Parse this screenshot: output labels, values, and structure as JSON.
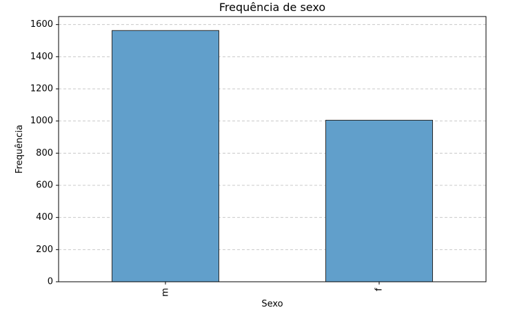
{
  "chart_data": {
    "type": "bar",
    "title": "Frequência de sexo",
    "xlabel": "Sexo",
    "ylabel": "Frequência",
    "categories": [
      "m",
      "f"
    ],
    "values": [
      1563,
      1005
    ],
    "ylim": [
      0,
      1650
    ],
    "yticks": [
      "0",
      "200",
      "400",
      "600",
      "800",
      "1000",
      "1200",
      "1400",
      "1600"
    ],
    "grid": "y-dashed",
    "legend": "none",
    "colors": {
      "bar": "#619fcb",
      "bar_edge": "#2b2b2b",
      "grid": "#c8c8c8"
    }
  }
}
